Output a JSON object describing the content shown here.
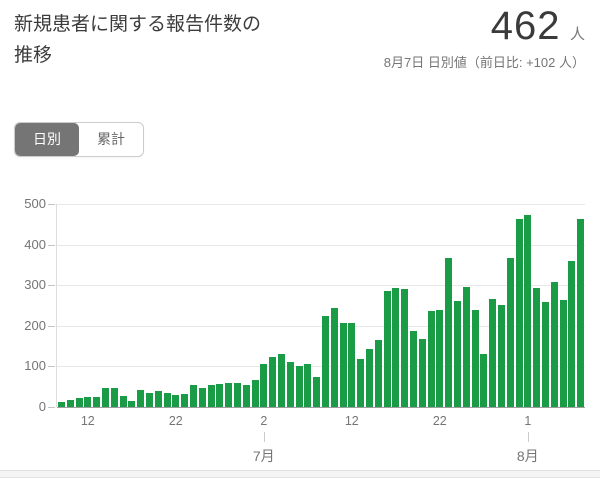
{
  "header": {
    "title_line1": "新規患者に関する報告件数の",
    "title_line2": "推移",
    "value": "462",
    "unit": "人",
    "subtitle": "8月7日 日別値（前日比: +102 人）"
  },
  "toggle": {
    "daily_label": "日別",
    "cumulative_label": "累計",
    "selected": "日別"
  },
  "chart_data": {
    "type": "bar",
    "title": "新規患者に関する報告件数の推移（日別）",
    "values": [
      12,
      18,
      22,
      25,
      24,
      47,
      48,
      27,
      16,
      41,
      35,
      39,
      35,
      29,
      31,
      55,
      48,
      54,
      57,
      60,
      58,
      54,
      67,
      107,
      124,
      131,
      111,
      102,
      106,
      75,
      224,
      243,
      206,
      206,
      119,
      143,
      165,
      286,
      293,
      290,
      188,
      168,
      237,
      238,
      366,
      260,
      295,
      239,
      131,
      266,
      250,
      367,
      463,
      472,
      292,
      258,
      309,
      263,
      360,
      462
    ],
    "ylim": [
      0,
      500
    ],
    "y_ticks": [
      0,
      100,
      200,
      300,
      400,
      500
    ],
    "x_ticks": [
      {
        "label": "12",
        "index": 3
      },
      {
        "label": "22",
        "index": 13
      },
      {
        "label": "2",
        "index": 23
      },
      {
        "label": "12",
        "index": 33
      },
      {
        "label": "22",
        "index": 43
      },
      {
        "label": "1",
        "index": 53
      }
    ],
    "month_labels": [
      {
        "label": "7月",
        "index": 23
      },
      {
        "label": "8月",
        "index": 53
      }
    ],
    "bar_color": "#1a9c47",
    "grid": true,
    "legend": "none"
  }
}
